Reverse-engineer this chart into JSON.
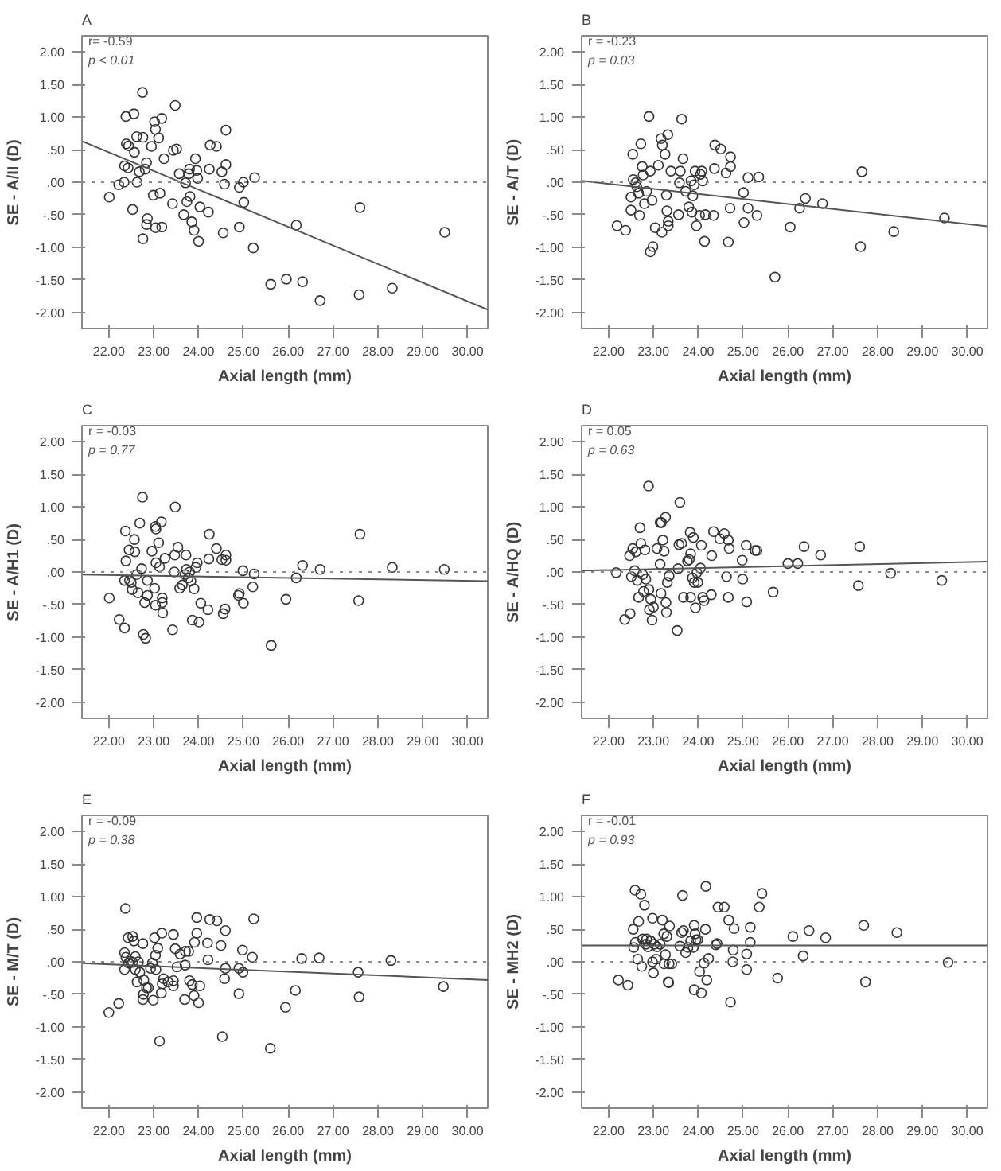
{
  "chart_data": [
    {
      "type": "scatter",
      "title": "A",
      "annotations": [
        "r= -0.59",
        "p < 0.01"
      ],
      "xlabel": "Axial length (mm)",
      "ylabel": "SE - A/II (D)",
      "marker": "circle",
      "xlim": [
        21.4,
        30.45
      ],
      "xticks": [
        {
          "value": 22,
          "label": "22.00"
        },
        {
          "value": 23,
          "label": "23.00"
        },
        {
          "value": 24,
          "label": "24.00"
        },
        {
          "value": 25,
          "label": "25.00"
        },
        {
          "value": 26,
          "label": "26.00"
        },
        {
          "value": 27,
          "label": "27.00"
        },
        {
          "value": 28,
          "label": "28.00"
        },
        {
          "value": 29,
          "label": "29.00"
        },
        {
          "value": 30,
          "label": "30.00"
        }
      ],
      "ylim": [
        -2.25,
        2.25
      ],
      "yticks": [
        {
          "value": -2,
          "label": "-2.00"
        },
        {
          "value": -1.5,
          "label": "-1.50"
        },
        {
          "value": -1,
          "label": "-1.00"
        },
        {
          "value": -0.5,
          "label": "-.50"
        },
        {
          "value": 0,
          "label": ".00"
        },
        {
          "value": 0.5,
          "label": ".50"
        },
        {
          "value": 1,
          "label": "1.00"
        },
        {
          "value": 1.5,
          "label": "1.50"
        },
        {
          "value": 2,
          "label": "2.00"
        }
      ],
      "ref_lines": [
        {
          "axis": "y",
          "value": 0,
          "line_style": "dotted",
          "color": "#888888"
        }
      ],
      "series": [
        {
          "color": "#333333",
          "x": [
            22.01,
            22.22,
            22.34,
            22.35,
            22.38,
            22.39,
            22.43,
            22.44,
            22.53,
            22.56,
            22.57,
            22.62,
            22.63,
            22.68,
            22.75,
            22.76,
            22.76,
            22.81,
            22.84,
            22.86,
            22.84,
            22.95,
            22.99,
            23.02,
            23.04,
            23.04,
            23.11,
            23.14,
            23.18,
            23.18,
            23.23,
            23.42,
            23.44,
            23.48,
            23.51,
            23.57,
            23.67,
            23.71,
            23.74,
            23.78,
            23.8,
            23.81,
            23.85,
            23.9,
            23.93,
            23.96,
            23.98,
            24.0,
            24.03,
            24.22,
            24.24,
            24.26,
            24.4,
            24.52,
            24.55,
            24.58,
            24.61,
            24.61,
            24.91,
            24.91,
            25.0,
            25.01,
            25.22,
            25.25,
            25.61,
            25.96,
            26.18,
            26.32,
            26.71,
            27.58,
            27.6,
            28.32,
            29.49
          ],
          "values": [
            -0.23,
            -0.04,
            0.0,
            0.25,
            1.01,
            0.59,
            0.22,
            0.56,
            -0.42,
            1.05,
            0.46,
            0.7,
            0.0,
            0.16,
            1.38,
            0.69,
            -0.87,
            0.2,
            0.3,
            -0.56,
            -0.65,
            0.55,
            -0.2,
            0.93,
            0.81,
            -0.7,
            0.68,
            -0.17,
            0.98,
            -0.69,
            0.36,
            -0.33,
            0.49,
            1.18,
            0.51,
            0.13,
            -0.5,
            -0.01,
            -0.3,
            0.13,
            0.2,
            -0.22,
            -0.61,
            -0.74,
            0.36,
            0.18,
            0.06,
            -0.91,
            -0.38,
            -0.46,
            0.2,
            0.57,
            0.55,
            0.16,
            -0.78,
            -0.03,
            0.8,
            0.27,
            -0.69,
            -0.08,
            0.0,
            -0.31,
            -1.01,
            0.07,
            -1.57,
            -1.49,
            -0.66,
            -1.53,
            -1.82,
            -1.73,
            -0.39,
            -1.63,
            -0.77
          ]
        },
        {
          "type": "line",
          "color": "#555555",
          "x": [
            21.4,
            30.45
          ],
          "values": [
            0.63,
            -1.96
          ],
          "marker": "none"
        }
      ]
    },
    {
      "type": "scatter",
      "title": "B",
      "annotations": [
        "r = -0.23",
        "p = 0.03"
      ],
      "xlabel": "Axial length (mm)",
      "ylabel": "SE - A/T (D)",
      "marker": "circle",
      "xlim": [
        21.4,
        30.45
      ],
      "xticks": [
        {
          "value": 22,
          "label": "22.00"
        },
        {
          "value": 23,
          "label": "23.00"
        },
        {
          "value": 24,
          "label": "24.00"
        },
        {
          "value": 25,
          "label": "25.00"
        },
        {
          "value": 26,
          "label": "26.00"
        },
        {
          "value": 27,
          "label": "27.00"
        },
        {
          "value": 28,
          "label": "28.00"
        },
        {
          "value": 29,
          "label": "29.00"
        },
        {
          "value": 30,
          "label": "30.00"
        }
      ],
      "ylim": [
        -2.25,
        2.25
      ],
      "yticks": [
        {
          "value": -2,
          "label": "-2.00"
        },
        {
          "value": -1.5,
          "label": "-1.50"
        },
        {
          "value": -1,
          "label": "-1.00"
        },
        {
          "value": -0.5,
          "label": "-.50"
        },
        {
          "value": 0,
          "label": ".00"
        },
        {
          "value": 0.5,
          "label": ".50"
        },
        {
          "value": 1,
          "label": "1.00"
        },
        {
          "value": 1.5,
          "label": "1.50"
        },
        {
          "value": 2,
          "label": "2.00"
        }
      ],
      "ref_lines": [
        {
          "axis": "y",
          "value": 0,
          "line_style": "dotted",
          "color": "#888888"
        }
      ],
      "series": [
        {
          "color": "#333333",
          "x": [
            22.19,
            22.38,
            22.5,
            22.5,
            22.54,
            22.55,
            22.6,
            22.63,
            22.67,
            22.69,
            22.72,
            22.75,
            22.77,
            22.8,
            22.85,
            22.9,
            22.93,
            22.93,
            22.97,
            22.99,
            23.04,
            23.11,
            23.17,
            23.19,
            23.2,
            23.26,
            23.29,
            23.3,
            23.32,
            23.33,
            23.33,
            23.39,
            23.56,
            23.58,
            23.6,
            23.63,
            23.66,
            23.72,
            23.79,
            23.84,
            23.86,
            23.88,
            23.91,
            23.93,
            23.96,
            24.03,
            24.05,
            24.08,
            24.1,
            24.14,
            24.16,
            24.34,
            24.36,
            24.37,
            24.5,
            24.62,
            24.67,
            24.71,
            24.72,
            24.72,
            25.01,
            25.02,
            25.11,
            25.11,
            25.31,
            25.35,
            25.71,
            26.05,
            26.26,
            26.39,
            26.77,
            27.62,
            27.65,
            28.36,
            29.49
          ],
          "values": [
            -0.67,
            -0.74,
            -0.43,
            -0.23,
            0.43,
            0.04,
            -0.01,
            -0.07,
            -0.17,
            -0.51,
            0.59,
            0.24,
            0.11,
            -0.33,
            -0.14,
            1.01,
            0.17,
            -1.07,
            -0.28,
            -0.99,
            -0.7,
            0.26,
            0.67,
            -0.77,
            0.57,
            0.43,
            -0.2,
            -0.44,
            0.73,
            -0.6,
            -0.67,
            0.17,
            -0.5,
            -0.01,
            0.17,
            0.97,
            0.36,
            -0.14,
            -0.38,
            0.02,
            -0.46,
            -0.21,
            -0.04,
            0.17,
            -0.67,
            -0.51,
            0.12,
            0.17,
            0.02,
            -0.91,
            -0.5,
            -0.51,
            0.21,
            0.57,
            0.51,
            0.14,
            -0.92,
            -0.4,
            0.39,
            0.24,
            -0.16,
            -0.62,
            0.07,
            -0.4,
            -0.51,
            0.08,
            -1.46,
            -0.69,
            -0.4,
            -0.25,
            -0.33,
            -0.99,
            0.16,
            -0.76,
            -0.55
          ]
        },
        {
          "type": "line",
          "color": "#555555",
          "x": [
            21.4,
            30.45
          ],
          "values": [
            0.02,
            -0.68
          ],
          "marker": "none"
        }
      ]
    },
    {
      "type": "scatter",
      "title": "C",
      "annotations": [
        "r = -0.03",
        "p = 0.77"
      ],
      "xlabel": "Axial length (mm)",
      "ylabel": "SE - A/H1 (D)",
      "marker": "circle",
      "xlim": [
        21.4,
        30.45
      ],
      "xticks": [
        {
          "value": 22,
          "label": "22.00"
        },
        {
          "value": 23,
          "label": "23.00"
        },
        {
          "value": 24,
          "label": "24.00"
        },
        {
          "value": 25,
          "label": "25.00"
        },
        {
          "value": 26,
          "label": "26.00"
        },
        {
          "value": 27,
          "label": "27.00"
        },
        {
          "value": 28,
          "label": "28.00"
        },
        {
          "value": 29,
          "label": "29.00"
        },
        {
          "value": 30,
          "label": "30.00"
        }
      ],
      "ylim": [
        -2.25,
        2.25
      ],
      "yticks": [
        {
          "value": -2,
          "label": "-2.00"
        },
        {
          "value": -1.5,
          "label": "-1.50"
        },
        {
          "value": -1,
          "label": "-1.00"
        },
        {
          "value": -0.5,
          "label": "-.50"
        },
        {
          "value": 0,
          "label": ".00"
        },
        {
          "value": 0.5,
          "label": ".50"
        },
        {
          "value": 1,
          "label": "1.00"
        },
        {
          "value": 1.5,
          "label": "1.50"
        },
        {
          "value": 2,
          "label": "2.00"
        }
      ],
      "ref_lines": [
        {
          "axis": "y",
          "value": 0,
          "line_style": "dotted",
          "color": "#888888"
        }
      ],
      "series": [
        {
          "color": "#333333",
          "x": [
            22.01,
            22.23,
            22.35,
            22.37,
            22.38,
            22.35,
            22.45,
            22.46,
            22.5,
            22.52,
            22.57,
            22.58,
            22.62,
            22.65,
            22.69,
            22.73,
            22.75,
            22.77,
            22.8,
            22.82,
            22.86,
            22.86,
            22.96,
            23.02,
            23.04,
            23.04,
            23.05,
            23.05,
            23.11,
            23.13,
            23.17,
            23.19,
            23.19,
            23.2,
            23.25,
            23.42,
            23.46,
            23.47,
            23.48,
            23.54,
            23.58,
            23.64,
            23.7,
            23.72,
            23.73,
            23.77,
            23.8,
            23.83,
            23.86,
            23.9,
            23.94,
            23.97,
            24.01,
            24.05,
            24.21,
            24.23,
            24.24,
            24.4,
            24.52,
            24.55,
            24.59,
            24.61,
            24.61,
            24.89,
            24.91,
            24.99,
            25.0,
            25.21,
            25.24,
            25.62,
            25.95,
            26.18,
            26.32,
            26.71,
            27.57,
            27.6,
            28.32,
            29.48
          ],
          "values": [
            -0.4,
            -0.73,
            -0.86,
            0.63,
            0.17,
            -0.13,
            0.34,
            -0.13,
            -0.16,
            -0.27,
            0.5,
            0.31,
            -0.04,
            -0.32,
            0.75,
            0.05,
            1.15,
            -0.96,
            -0.47,
            -1.02,
            -0.13,
            -0.36,
            0.32,
            -0.25,
            0.7,
            -0.51,
            0.66,
            0.14,
            0.45,
            0.08,
            0.77,
            -0.4,
            -0.47,
            -0.63,
            0.21,
            -0.89,
            0.0,
            0.26,
            1.0,
            0.38,
            -0.25,
            -0.2,
            -0.04,
            0.26,
            0.04,
            -0.09,
            0.0,
            -0.14,
            -0.74,
            -0.26,
            0.07,
            0.14,
            -0.77,
            -0.48,
            -0.58,
            0.2,
            0.58,
            0.36,
            0.19,
            -0.64,
            -0.57,
            0.26,
            0.18,
            -0.36,
            -0.33,
            0.02,
            -0.48,
            -0.23,
            -0.03,
            -1.13,
            -0.42,
            -0.09,
            0.1,
            0.04,
            -0.44,
            0.58,
            0.07,
            0.04
          ]
        },
        {
          "type": "line",
          "color": "#555555",
          "x": [
            21.4,
            30.45
          ],
          "values": [
            -0.04,
            -0.14
          ],
          "marker": "none"
        }
      ]
    },
    {
      "type": "scatter",
      "title": "D",
      "annotations": [
        "r = 0.05",
        "p = 0.63"
      ],
      "xlabel": "Axial length (mm)",
      "ylabel": "SE - A/HQ (D)",
      "marker": "circle",
      "xlim": [
        21.4,
        30.45
      ],
      "xticks": [
        {
          "value": 22,
          "label": "22.00"
        },
        {
          "value": 23,
          "label": "23.00"
        },
        {
          "value": 24,
          "label": "24.00"
        },
        {
          "value": 25,
          "label": "25.00"
        },
        {
          "value": 26,
          "label": "26.00"
        },
        {
          "value": 27,
          "label": "27.00"
        },
        {
          "value": 28,
          "label": "28.00"
        },
        {
          "value": 29,
          "label": "29.00"
        },
        {
          "value": 30,
          "label": "30.00"
        }
      ],
      "ylim": [
        -2.25,
        2.25
      ],
      "yticks": [
        {
          "value": -2,
          "label": "-2.00"
        },
        {
          "value": -1.5,
          "label": "-1.50"
        },
        {
          "value": -1,
          "label": "-1.00"
        },
        {
          "value": -0.5,
          "label": "-.50"
        },
        {
          "value": 0,
          "label": ".00"
        },
        {
          "value": 0.5,
          "label": ".50"
        },
        {
          "value": 1,
          "label": "1.00"
        },
        {
          "value": 1.5,
          "label": "1.50"
        },
        {
          "value": 2,
          "label": "2.00"
        }
      ],
      "ref_lines": [
        {
          "axis": "y",
          "value": 0,
          "line_style": "dotted",
          "color": "#888888"
        }
      ],
      "series": [
        {
          "color": "#333333",
          "x": [
            22.17,
            22.36,
            22.47,
            22.48,
            22.51,
            22.54,
            22.58,
            22.61,
            22.64,
            22.67,
            22.7,
            22.72,
            22.76,
            22.78,
            22.81,
            22.83,
            22.89,
            22.9,
            22.91,
            22.94,
            22.97,
            23.0,
            23.08,
            23.15,
            23.15,
            23.18,
            23.17,
            23.21,
            23.24,
            23.27,
            23.28,
            23.29,
            23.31,
            23.35,
            23.53,
            23.55,
            23.57,
            23.59,
            23.63,
            23.67,
            23.76,
            23.8,
            23.82,
            23.83,
            23.83,
            23.87,
            23.89,
            23.91,
            23.94,
            23.97,
            23.99,
            24.05,
            24.07,
            24.1,
            24.13,
            24.29,
            24.3,
            24.34,
            24.48,
            24.58,
            24.63,
            24.67,
            24.67,
            24.69,
            24.98,
            24.99,
            25.07,
            25.08,
            25.27,
            25.31,
            25.67,
            26.0,
            26.22,
            26.36,
            26.73,
            27.57,
            27.6,
            28.29,
            29.43
          ],
          "values": [
            -0.01,
            -0.73,
            0.25,
            -0.64,
            -0.07,
            0.36,
            0.02,
            0.31,
            -0.13,
            -0.39,
            0.68,
            0.44,
            -0.04,
            -0.3,
            0.34,
            -0.11,
            1.32,
            -0.27,
            -0.58,
            -0.42,
            -0.74,
            -0.54,
            0.36,
            0.12,
            0.76,
            0.76,
            -0.33,
            0.49,
            0.32,
            0.84,
            -0.47,
            -0.62,
            -0.16,
            -0.06,
            -0.9,
            0.05,
            0.42,
            1.07,
            0.44,
            -0.39,
            0.17,
            0.19,
            0.61,
            -0.39,
            0.28,
            -0.09,
            0.53,
            -0.16,
            -0.55,
            -0.01,
            -0.16,
            0.06,
            0.41,
            -0.39,
            -0.44,
            -0.35,
            0.25,
            0.62,
            0.51,
            0.59,
            -0.07,
            0.49,
            -0.39,
            0.36,
            0.18,
            -0.11,
            0.41,
            -0.46,
            0.33,
            0.33,
            -0.31,
            0.13,
            0.13,
            0.39,
            0.26,
            -0.21,
            0.39,
            -0.02,
            -0.13
          ]
        },
        {
          "type": "line",
          "color": "#555555",
          "x": [
            21.4,
            30.45
          ],
          "values": [
            0.02,
            0.16
          ],
          "marker": "none"
        }
      ]
    },
    {
      "type": "scatter",
      "title": "E",
      "annotations": [
        "r = -0.09",
        "p = 0.38"
      ],
      "xlabel": "Axial length (mm)",
      "ylabel": "SE - M/T (D)",
      "marker": "circle",
      "xlim": [
        21.4,
        30.45
      ],
      "xticks": [
        {
          "value": 22,
          "label": "22.00"
        },
        {
          "value": 23,
          "label": "23.00"
        },
        {
          "value": 24,
          "label": "24.00"
        },
        {
          "value": 25,
          "label": "25.00"
        },
        {
          "value": 26,
          "label": "26.00"
        },
        {
          "value": 27,
          "label": "27.00"
        },
        {
          "value": 28,
          "label": "28.00"
        },
        {
          "value": 29,
          "label": "29.00"
        },
        {
          "value": 30,
          "label": "30.00"
        }
      ],
      "ylim": [
        -2.25,
        2.25
      ],
      "yticks": [
        {
          "value": -2,
          "label": "-2.00"
        },
        {
          "value": -1.5,
          "label": "-1.50"
        },
        {
          "value": -1,
          "label": "-1.00"
        },
        {
          "value": -0.5,
          "label": "-.50"
        },
        {
          "value": 0,
          "label": ".00"
        },
        {
          "value": 0.5,
          "label": ".50"
        },
        {
          "value": 1,
          "label": "1.00"
        },
        {
          "value": 1.5,
          "label": "1.50"
        },
        {
          "value": 2,
          "label": "2.00"
        }
      ],
      "ref_lines": [
        {
          "axis": "y",
          "value": 0,
          "line_style": "dotted",
          "color": "#888888"
        }
      ],
      "series": [
        {
          "color": "#333333",
          "x": [
            22.0,
            22.22,
            22.35,
            22.35,
            22.37,
            22.38,
            22.43,
            22.44,
            22.48,
            22.53,
            22.53,
            22.56,
            22.59,
            22.59,
            22.63,
            22.66,
            22.69,
            22.76,
            22.76,
            22.77,
            22.78,
            22.84,
            22.88,
            22.93,
            22.97,
            22.99,
            23.02,
            23.05,
            23.04,
            23.09,
            23.13,
            23.17,
            23.18,
            23.19,
            23.22,
            23.32,
            23.44,
            23.44,
            23.44,
            23.48,
            23.52,
            23.59,
            23.69,
            23.7,
            23.71,
            23.78,
            23.8,
            23.86,
            23.9,
            23.91,
            23.96,
            23.96,
            24.0,
            24.03,
            24.2,
            24.21,
            24.25,
            24.41,
            24.5,
            24.53,
            24.58,
            24.6,
            24.6,
            24.9,
            24.9,
            24.98,
            24.99,
            25.2,
            25.23,
            25.6,
            25.94,
            26.16,
            26.3,
            26.69,
            27.56,
            27.58,
            28.29,
            29.46
          ],
          "values": [
            -0.78,
            -0.64,
            0.14,
            -0.12,
            0.82,
            0.07,
            0.37,
            -0.02,
            0.01,
            0.39,
            -0.01,
            0.32,
            0.08,
            -0.12,
            -0.31,
            0.0,
            -0.16,
            0.28,
            -0.58,
            -0.5,
            -0.28,
            -0.4,
            -0.4,
            -0.1,
            -0.02,
            -0.59,
            0.37,
            -0.12,
            0.1,
            0.21,
            -1.22,
            -0.48,
            0.44,
            -0.34,
            -0.26,
            -0.31,
            -0.37,
            0.42,
            -0.29,
            0.2,
            -0.08,
            0.12,
            -0.58,
            -0.05,
            0.16,
            0.16,
            -0.29,
            -0.35,
            -0.52,
            0.3,
            0.44,
            0.68,
            -0.63,
            -0.37,
            0.29,
            0.03,
            0.65,
            0.63,
            0.25,
            -1.15,
            -0.26,
            0.48,
            -0.1,
            -0.49,
            -0.1,
            0.18,
            -0.16,
            0.07,
            0.66,
            -1.33,
            -0.7,
            -0.44,
            0.05,
            0.06,
            -0.16,
            -0.54,
            0.02,
            -0.38
          ]
        },
        {
          "type": "line",
          "color": "#555555",
          "x": [
            21.4,
            30.45
          ],
          "values": [
            -0.02,
            -0.28
          ],
          "marker": "none"
        }
      ]
    },
    {
      "type": "scatter",
      "title": "F",
      "annotations": [
        "r = -0.01",
        "p = 0.93"
      ],
      "xlabel": "Axial length (mm)",
      "ylabel": "SE - MH2 (D)",
      "marker": "circle",
      "xlim": [
        21.4,
        30.45
      ],
      "xticks": [
        {
          "value": 22,
          "label": "22.00"
        },
        {
          "value": 23,
          "label": "23.00"
        },
        {
          "value": 24,
          "label": "24.00"
        },
        {
          "value": 25,
          "label": "25.00"
        },
        {
          "value": 26,
          "label": "26.00"
        },
        {
          "value": 27,
          "label": "27.00"
        },
        {
          "value": 28,
          "label": "28.00"
        },
        {
          "value": 29,
          "label": "29.00"
        },
        {
          "value": 30,
          "label": "30.00"
        }
      ],
      "ylim": [
        -2.25,
        2.25
      ],
      "yticks": [
        {
          "value": -2,
          "label": "-2.00"
        },
        {
          "value": -1.5,
          "label": "-1.50"
        },
        {
          "value": -1,
          "label": "-1.00"
        },
        {
          "value": -0.5,
          "label": "-.50"
        },
        {
          "value": 0,
          "label": ".00"
        },
        {
          "value": 0.5,
          "label": ".50"
        },
        {
          "value": 1,
          "label": "1.00"
        },
        {
          "value": 1.5,
          "label": "1.50"
        },
        {
          "value": 2,
          "label": "2.00"
        }
      ],
      "ref_lines": [
        {
          "axis": "y",
          "value": 0,
          "line_style": "dotted",
          "color": "#888888"
        }
      ],
      "series": [
        {
          "color": "#333333",
          "x": [
            22.22,
            22.43,
            22.55,
            22.56,
            22.59,
            22.6,
            22.65,
            22.67,
            22.72,
            22.74,
            22.76,
            22.8,
            22.83,
            22.85,
            22.88,
            22.94,
            22.98,
            22.98,
            23.0,
            23.02,
            23.06,
            23.08,
            23.15,
            23.2,
            23.23,
            23.24,
            23.27,
            23.3,
            23.33,
            23.34,
            23.35,
            23.36,
            23.41,
            23.59,
            23.63,
            23.65,
            23.67,
            23.72,
            23.77,
            23.83,
            23.89,
            23.91,
            23.91,
            23.93,
            23.95,
            23.99,
            24.03,
            24.07,
            24.13,
            24.16,
            24.17,
            24.19,
            24.23,
            24.39,
            24.42,
            24.44,
            24.58,
            24.68,
            24.72,
            24.77,
            24.78,
            24.8,
            25.08,
            25.08,
            25.16,
            25.16,
            25.36,
            25.42,
            25.77,
            26.11,
            26.34,
            26.47,
            26.84,
            27.69,
            27.73,
            28.43,
            29.57
          ],
          "values": [
            -0.28,
            -0.36,
            0.5,
            0.22,
            1.1,
            0.3,
            0.04,
            0.62,
            1.04,
            -0.07,
            0.35,
            0.87,
            0.27,
            0.35,
            0.23,
            0.32,
            0.67,
            0.0,
            -0.17,
            0.27,
            0.04,
            0.23,
            0.27,
            0.64,
            0.43,
            -0.03,
            0.11,
            0.39,
            -0.31,
            -0.32,
            -0.03,
            0.55,
            -0.03,
            0.24,
            0.45,
            1.02,
            0.48,
            0.14,
            0.22,
            0.32,
            0.22,
            0.56,
            -0.43,
            0.43,
            0.34,
            0.34,
            -0.15,
            -0.48,
            -0.02,
            0.5,
            1.16,
            -0.28,
            0.05,
            0.26,
            0.28,
            0.84,
            0.84,
            0.64,
            -0.62,
            0.0,
            0.18,
            0.51,
            0.12,
            -0.12,
            0.53,
            0.3,
            0.84,
            1.05,
            -0.25,
            0.39,
            0.09,
            0.48,
            0.37,
            0.56,
            -0.31,
            0.45,
            -0.01
          ]
        },
        {
          "type": "line",
          "color": "#555555",
          "x": [
            21.4,
            30.45
          ],
          "values": [
            0.25,
            0.25
          ],
          "marker": "none"
        }
      ]
    }
  ]
}
